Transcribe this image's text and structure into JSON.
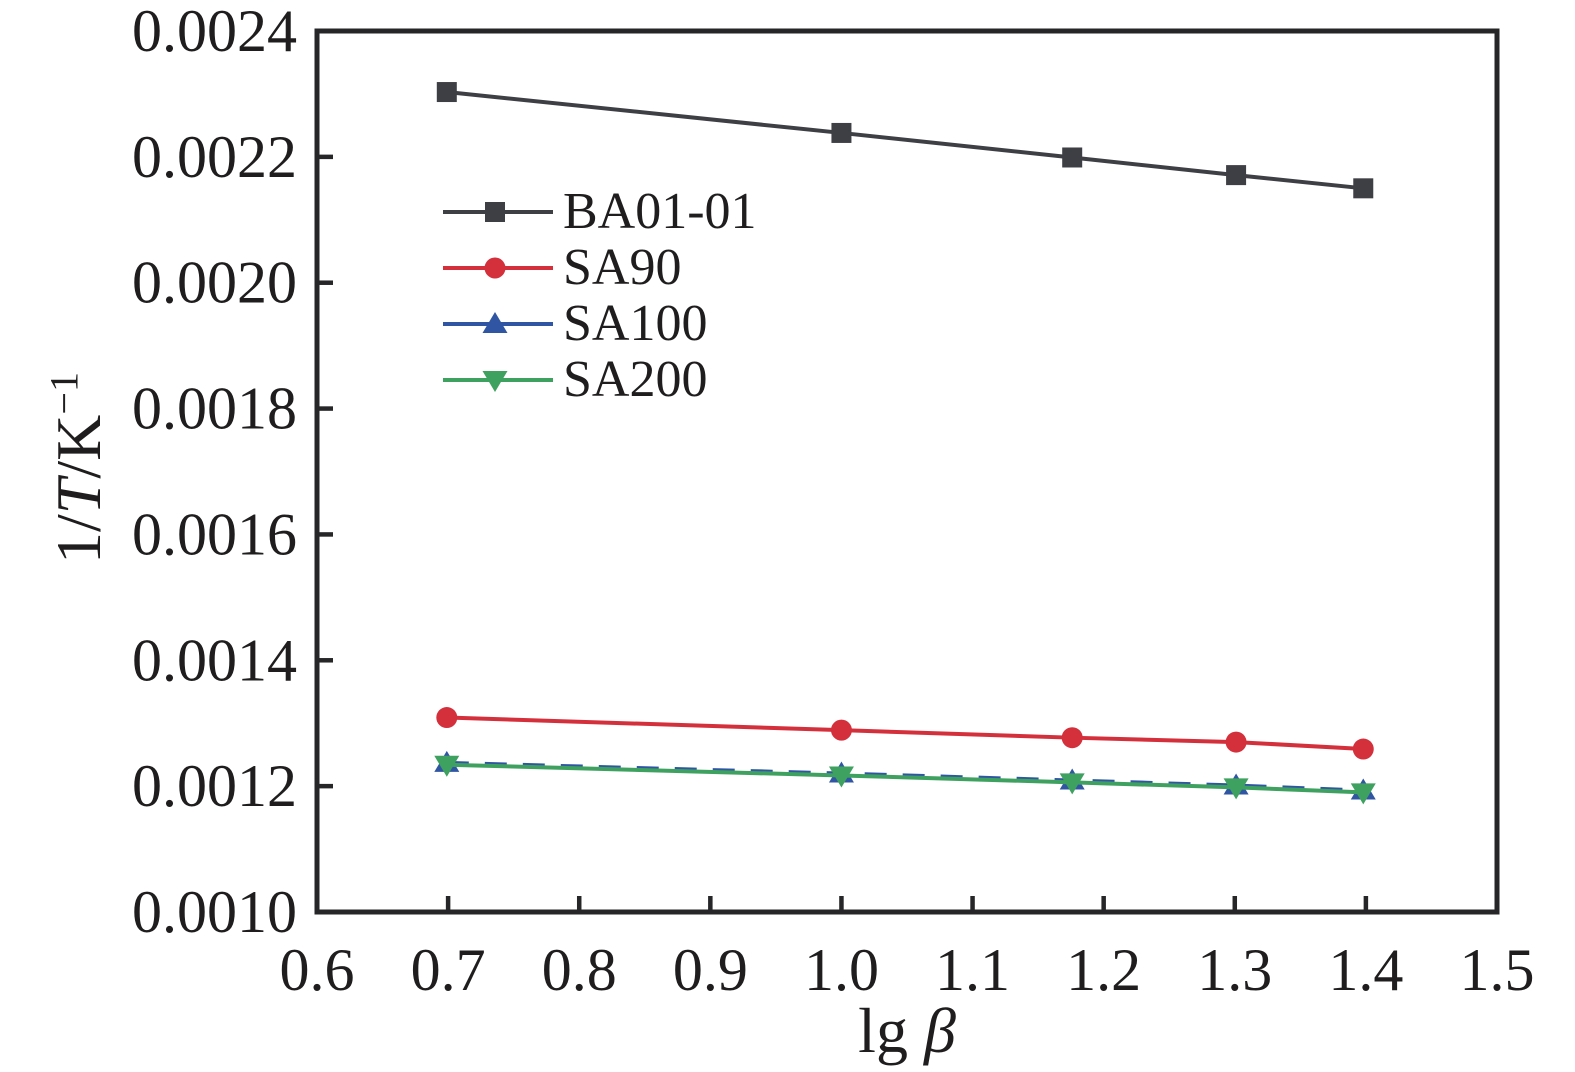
{
  "figure": {
    "background": "#ffffff",
    "text_color": "#1f1d1d",
    "axis_color": "#262527"
  },
  "chart_data": {
    "type": "line",
    "title": "",
    "xlabel": "lg β",
    "ylabel": "1/T/K⁻¹",
    "xlabel_parts": {
      "prefix": "lg ",
      "symbol": "β"
    },
    "ylabel_parts": {
      "p1": "1/",
      "italic": "T",
      "p2": "/K",
      "superscript": "−1"
    },
    "xlim": [
      0.6,
      1.5
    ],
    "ylim": [
      0.001,
      0.0024
    ],
    "x_tick_values": [
      0.6,
      0.7,
      0.8,
      0.9,
      1.0,
      1.1,
      1.2,
      1.3,
      1.4,
      1.5
    ],
    "x_tick_labels": [
      "0.6",
      "0.7",
      "0.8",
      "0.9",
      "1.0",
      "1.1",
      "1.2",
      "1.3",
      "1.4",
      "1.5"
    ],
    "y_tick_values": [
      0.001,
      0.0012,
      0.0014,
      0.0016,
      0.0018,
      0.002,
      0.0022,
      0.0024
    ],
    "y_tick_labels": [
      "0.0010",
      "0.0012",
      "0.0014",
      "0.0016",
      "0.0018",
      "0.0020",
      "0.0022",
      "0.0024"
    ],
    "grid": false,
    "legend_position": "upper-left-inside",
    "x": [
      0.699,
      1.0,
      1.176,
      1.301,
      1.398
    ],
    "series": [
      {
        "name": "BA01-01",
        "color": "#3E3F44",
        "marker": "square",
        "line_style": "solid",
        "values": [
          0.002303,
          0.002238,
          0.002199,
          0.002171,
          0.00215
        ]
      },
      {
        "name": "SA90",
        "color": "#D4303C",
        "marker": "circle",
        "line_style": "solid",
        "values": [
          0.001309,
          0.001289,
          0.001277,
          0.00127,
          0.001259
        ]
      },
      {
        "name": "SA100",
        "color": "#3056A3",
        "marker": "triangle-up",
        "line_style": "dashed",
        "values": [
          0.001237,
          0.00122,
          0.001209,
          0.001201,
          0.001193
        ]
      },
      {
        "name": "SA200",
        "color": "#3EA15F",
        "marker": "triangle-down",
        "line_style": "solid",
        "values": [
          0.001234,
          0.001217,
          0.001206,
          0.001198,
          0.00119
        ]
      }
    ]
  }
}
